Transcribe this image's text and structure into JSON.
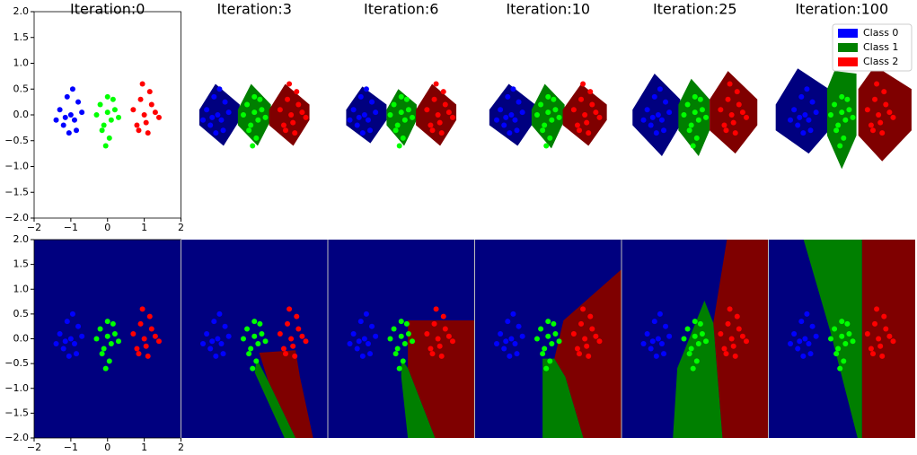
{
  "chart_data": {
    "type": "scatter",
    "xlim": [
      -2,
      2
    ],
    "ylim": [
      -2,
      2
    ],
    "xticks": [
      {
        "value": -2,
        "label": "−2"
      },
      {
        "value": -1,
        "label": "−1"
      },
      0,
      1,
      2
    ],
    "yticks": [
      {
        "value": -2,
        "label": "−2.0"
      },
      {
        "value": -1.5,
        "label": "−1.5"
      },
      {
        "value": -1,
        "label": "−1.0"
      },
      {
        "value": -0.5,
        "label": "−0.5"
      },
      {
        "value": 0,
        "label": "0.0"
      },
      {
        "value": 0.5,
        "label": "0.5"
      },
      {
        "value": 1,
        "label": "1.0"
      },
      {
        "value": 1.5,
        "label": "1.5"
      },
      {
        "value": 2,
        "label": "2.0"
      }
    ],
    "legend": "upper right",
    "series": [
      {
        "name": "Class 0",
        "color": "#0000ff",
        "legend_color": "#0000ff",
        "x": [
          -1.3,
          -1.2,
          -1.1,
          -1.0,
          -0.9,
          -0.8,
          -0.7,
          -1.05,
          -0.95,
          -1.15,
          -0.85,
          -1.4
        ],
        "y": [
          0.1,
          -0.2,
          0.35,
          0.0,
          -0.1,
          0.25,
          0.05,
          -0.35,
          0.5,
          -0.05,
          -0.3,
          -0.1
        ]
      },
      {
        "name": "Class 1",
        "color": "#00ff00",
        "legend_color": "#008000",
        "x": [
          -0.3,
          -0.2,
          -0.1,
          0,
          0.1,
          0.2,
          0.3,
          0.05,
          -0.05,
          0.15,
          -0.15,
          0.0
        ],
        "y": [
          0.0,
          0.2,
          -0.2,
          0.35,
          -0.1,
          0.1,
          -0.05,
          -0.45,
          -0.6,
          0.3,
          -0.3,
          0.05
        ]
      },
      {
        "name": "Class 2",
        "color": "#ff0000",
        "legend_color": "#ff0000",
        "x": [
          0.7,
          0.8,
          0.9,
          1.0,
          1.1,
          1.2,
          1.3,
          0.95,
          1.05,
          1.15,
          0.85,
          1.4
        ],
        "y": [
          0.1,
          -0.2,
          0.3,
          0.0,
          -0.35,
          0.2,
          0.05,
          0.6,
          -0.15,
          0.45,
          -0.3,
          -0.05
        ]
      }
    ],
    "top": [
      {
        "title": "Iteration:0",
        "regions": []
      },
      {
        "title": "Iteration:3",
        "regions": [
          {
            "color": "#00007f",
            "x": [
              -1.5,
              -1.06,
              -0.4,
              -0.4,
              -0.84,
              -1.5
            ],
            "y": [
              0.1,
              0.6,
              0.2,
              -0.1,
              -0.6,
              -0.2
            ]
          },
          {
            "color": "#007f00",
            "x": [
              -0.45,
              -0.09,
              0.45,
              0.45,
              0.09,
              -0.45
            ],
            "y": [
              0.1,
              0.6,
              0.2,
              -0.1,
              -0.6,
              -0.2
            ]
          },
          {
            "color": "#7f0000",
            "x": [
              0.4,
              0.84,
              1.5,
              1.5,
              1.06,
              0.4
            ],
            "y": [
              0.1,
              0.6,
              0.2,
              -0.1,
              -0.6,
              -0.2
            ]
          }
        ]
      },
      {
        "title": "Iteration:6",
        "regions": [
          {
            "color": "#00007f",
            "x": [
              -1.5,
              -1.06,
              -0.4,
              -0.4,
              -0.84,
              -1.5
            ],
            "y": [
              0.1,
              0.55,
              0.2,
              -0.1,
              -0.55,
              -0.2
            ]
          },
          {
            "color": "#007f00",
            "x": [
              -0.4,
              -0.08,
              0.42,
              0.42,
              0.08,
              -0.4
            ],
            "y": [
              0.1,
              0.5,
              0.2,
              -0.1,
              -0.6,
              -0.2
            ]
          },
          {
            "color": "#7f0000",
            "x": [
              0.4,
              0.84,
              1.5,
              1.5,
              1.06,
              0.4
            ],
            "y": [
              0.1,
              0.6,
              0.2,
              -0.1,
              -0.6,
              -0.2
            ]
          }
        ]
      },
      {
        "title": "Iteration:10",
        "regions": [
          {
            "color": "#00007f",
            "x": [
              -1.6,
              -1.07,
              -0.35,
              -0.35,
              -0.83,
              -1.6
            ],
            "y": [
              0.1,
              0.6,
              0.2,
              -0.1,
              -0.6,
              -0.2
            ]
          },
          {
            "color": "#007f00",
            "x": [
              -0.45,
              -0.09,
              0.45,
              0.45,
              0.09,
              -0.45
            ],
            "y": [
              0.1,
              0.6,
              0.2,
              -0.1,
              -0.65,
              -0.2
            ]
          },
          {
            "color": "#7f0000",
            "x": [
              0.4,
              0.9,
              1.6,
              1.6,
              1.1,
              0.4
            ],
            "y": [
              0.1,
              0.6,
              0.2,
              -0.1,
              -0.6,
              -0.2
            ]
          }
        ]
      },
      {
        "title": "Iteration:25",
        "regions": [
          {
            "color": "#00007f",
            "x": [
              -1.7,
              -1.1,
              -0.4,
              -0.4,
              -0.9,
              -1.7
            ],
            "y": [
              0.1,
              0.8,
              0.3,
              -0.2,
              -0.8,
              -0.2
            ]
          },
          {
            "color": "#007f00",
            "x": [
              -0.45,
              -0.1,
              0.4,
              0.4,
              0.1,
              -0.45
            ],
            "y": [
              0.2,
              0.7,
              0.3,
              -0.3,
              -0.8,
              -0.3
            ]
          },
          {
            "color": "#7f0000",
            "x": [
              0.4,
              0.9,
              1.7,
              1.7,
              1.1,
              0.4
            ],
            "y": [
              0.3,
              0.85,
              0.3,
              -0.2,
              -0.75,
              -0.3
            ]
          }
        ]
      },
      {
        "title": "Iteration:100",
        "regions": [
          {
            "color": "#00007f",
            "x": [
              -1.8,
              -1.2,
              -0.35,
              -0.35,
              -0.9,
              -1.8
            ],
            "y": [
              0.2,
              0.9,
              0.5,
              -0.3,
              -0.75,
              -0.3
            ]
          },
          {
            "color": "#007f00",
            "x": [
              -0.4,
              -0.2,
              0.4,
              0.4,
              0,
              -0.4
            ],
            "y": [
              0.5,
              0.85,
              0.8,
              -0.4,
              -1.05,
              -0.4
            ]
          },
          {
            "color": "#7f0000",
            "x": [
              0.45,
              0.9,
              1.9,
              1.9,
              1.1,
              0.45
            ],
            "y": [
              0.5,
              0.95,
              0.5,
              -0.3,
              -0.9,
              -0.4
            ]
          }
        ]
      }
    ],
    "bottom": [
      {
        "background": "#00007f",
        "regions": []
      },
      {
        "background": "#00007f",
        "regions": [
          {
            "color": "#7f0000",
            "x": [
              0.13,
              1.12,
              1.24,
              1.6,
              1.12,
              0.38
            ],
            "y": [
              -0.28,
              -0.23,
              -0.77,
              -2,
              -2,
              -0.86
            ]
          },
          {
            "color": "#007f00",
            "x": [
              0.06,
              0.38,
              1.12,
              0.82,
              0.01
            ],
            "y": [
              -0.4,
              -0.86,
              -2,
              -2,
              -0.68
            ]
          }
        ]
      },
      {
        "background": "#00007f",
        "regions": [
          {
            "color": "#7f0000",
            "x": [
              0.18,
              2,
              2,
              0.92,
              0.18
            ],
            "y": [
              0.37,
              0.37,
              -2,
              -2,
              -0.59
            ]
          },
          {
            "color": "#007f00",
            "x": [
              0,
              0.18,
              0.92,
              0.18,
              0
            ],
            "y": [
              -0.4,
              -0.59,
              -2,
              -2,
              -0.77
            ]
          }
        ]
      },
      {
        "background": "#00007f",
        "regions": [
          {
            "color": "#7f0000",
            "x": [
              0.42,
              2,
              2,
              0.96,
              0.47,
              0.17
            ],
            "y": [
              0.37,
              1.4,
              -2,
              -2,
              -0.77,
              -0.4
            ]
          },
          {
            "color": "#007f00",
            "x": [
              -0.15,
              0.17,
              0.47,
              0.96,
              -0.15
            ],
            "y": [
              -0.4,
              -0.4,
              -0.77,
              -2,
              -2
            ]
          }
        ]
      },
      {
        "background": "#00007f",
        "regions": [
          {
            "color": "#7f0000",
            "x": [
              0.87,
              2,
              2,
              0.75,
              0.5
            ],
            "y": [
              2,
              2,
              -2,
              -2,
              0.32
            ]
          },
          {
            "color": "#007f00",
            "x": [
              0.26,
              0.5,
              0.75,
              -0.6,
              -0.48
            ],
            "y": [
              0.77,
              0.32,
              -2,
              -2,
              -0.59
            ]
          }
        ]
      },
      {
        "background": "#00007f",
        "regions": [
          {
            "color": "#7f0000",
            "x": [
              0.55,
              2,
              2,
              0.55
            ],
            "y": [
              2,
              2,
              -2,
              -2
            ]
          },
          {
            "color": "#007f00",
            "x": [
              -1.04,
              0.55,
              0.55,
              0.43,
              -0.31
            ],
            "y": [
              2,
              2,
              -2,
              -2,
              0.14
            ]
          }
        ]
      }
    ]
  }
}
